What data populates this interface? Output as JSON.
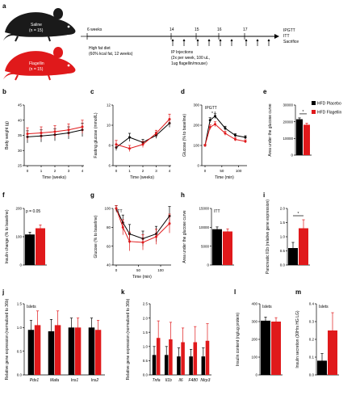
{
  "colors": {
    "black": "#000000",
    "red": "#e0191b",
    "mouse_black": "#1a1a1a",
    "mouse_red": "#e0191b"
  },
  "panel_labels": {
    "a": "a",
    "b": "b",
    "c": "c",
    "d": "d",
    "e": "e",
    "f": "f",
    "g": "g",
    "h": "h",
    "i": "i",
    "j": "j",
    "k": "k",
    "l": "l",
    "m": "m"
  },
  "schematic": {
    "saline_group": "Saline",
    "saline_n": "(n = 15)",
    "flagellin_group": "Flagellin",
    "flagellin_n": "(n = 15)",
    "start_label": "6 weeks",
    "diet_line1": "High fat diet",
    "diet_line2": "(60% kcal fat, 12 weeks)",
    "week_ticks": [
      "14",
      "15",
      "16",
      "17"
    ],
    "ip_line1": "IP Injections",
    "ip_line2": "(2x per week, 100 uL,",
    "ip_line3": "1ug flagellin/mouse)",
    "end_line1": "IPGTT",
    "end_line2": "ITT",
    "end_line3": "Sacrifice"
  },
  "legend": {
    "placebo": "HFD Placebo",
    "flagellin": "HFD Flagellin"
  },
  "chart_data": [
    {
      "panel": "b",
      "type": "line",
      "x": [
        0,
        1,
        2,
        3,
        4
      ],
      "series": [
        {
          "name": "HFD Placebo",
          "values": [
            34.5,
            34.8,
            35.2,
            35.8,
            36.8
          ],
          "errors": [
            2.0,
            2.0,
            2.0,
            2.0,
            2.2
          ]
        },
        {
          "name": "HFD Flagellin",
          "values": [
            35.5,
            35.8,
            36.2,
            36.8,
            37.8
          ],
          "errors": [
            2.0,
            2.0,
            2.0,
            2.0,
            2.2
          ]
        }
      ],
      "xlabel": "Time (weeks)",
      "ylabel": "Body weight (g)",
      "ylim": [
        25,
        45
      ],
      "yticks": [
        "25",
        "30",
        "35",
        "40",
        "45"
      ],
      "xticks": [
        "0",
        "1",
        "2",
        "3",
        "4"
      ]
    },
    {
      "panel": "c",
      "type": "line",
      "x": [
        0,
        1,
        2,
        3,
        4
      ],
      "series": [
        {
          "name": "HFD Placebo",
          "values": [
            7.8,
            8.8,
            8.3,
            9.0,
            10.2
          ],
          "errors": [
            0.3,
            0.4,
            0.3,
            0.3,
            0.4
          ]
        },
        {
          "name": "HFD Flagellin",
          "values": [
            8.1,
            7.7,
            8.1,
            9.2,
            10.6
          ],
          "errors": [
            0.4,
            0.3,
            0.3,
            0.3,
            0.5
          ]
        }
      ],
      "xlabel": "Time (weeks)",
      "ylabel": "Fasting glucose (mmol/L)",
      "ylim": [
        6,
        12
      ],
      "yticks": [
        "6",
        "8",
        "10",
        "12"
      ],
      "xticks": [
        "0",
        "1",
        "2",
        "3",
        "4"
      ]
    },
    {
      "panel": "d",
      "type": "line",
      "x": [
        0,
        15,
        30,
        60,
        90,
        120
      ],
      "series": [
        {
          "name": "HFD Placebo",
          "values": [
            100,
            225,
            245,
            185,
            150,
            140
          ],
          "errors": [
            5,
            12,
            12,
            10,
            8,
            8
          ]
        },
        {
          "name": "HFD Flagellin",
          "values": [
            100,
            190,
            205,
            160,
            130,
            120
          ],
          "errors": [
            5,
            12,
            12,
            10,
            8,
            8
          ]
        }
      ],
      "title": "IPGTT",
      "annotation": "* *",
      "xlabel": "Time (min)",
      "ylabel": "Glucose (% to baseline)",
      "ylim": [
        0,
        300
      ],
      "yticks": [
        "0",
        "100",
        "200",
        "300"
      ],
      "xticks": [
        "0",
        "50",
        "100"
      ]
    },
    {
      "panel": "e",
      "type": "bar",
      "categories": [
        "HFD Placebo",
        "HFD Flagellin"
      ],
      "values": [
        21500,
        18200
      ],
      "errors": [
        800,
        900
      ],
      "annotation": "*",
      "ylabel": "Area under the glucose curve",
      "ylim": [
        0,
        30000
      ],
      "yticks": [
        "0",
        "10000",
        "20000",
        "30000"
      ]
    },
    {
      "panel": "f",
      "type": "bar",
      "categories": [
        "HFD Placebo",
        "HFD Flagellin"
      ],
      "values": [
        108,
        130
      ],
      "errors": [
        8,
        12
      ],
      "annotation": "p = 0.05",
      "ylabel": "Insulin change (% to baseline)",
      "ylim": [
        0,
        200
      ],
      "yticks": [
        "0",
        "100",
        "200"
      ]
    },
    {
      "panel": "g",
      "type": "line",
      "x": [
        0,
        15,
        30,
        60,
        90,
        120
      ],
      "series": [
        {
          "name": "HFD Placebo",
          "values": [
            100,
            85,
            73,
            68,
            73,
            92
          ],
          "errors": [
            3,
            8,
            10,
            8,
            8,
            10
          ]
        },
        {
          "name": "HFD Flagellin",
          "values": [
            100,
            80,
            65,
            64,
            70,
            84
          ],
          "errors": [
            3,
            8,
            10,
            8,
            8,
            10
          ]
        }
      ],
      "title": "ITT",
      "xlabel": "Time (min)",
      "ylabel": "Glucose (% to baseline)",
      "ylim": [
        40,
        100
      ],
      "yticks": [
        "40",
        "60",
        "80",
        "100"
      ],
      "xticks": [
        "0",
        "50",
        "100"
      ]
    },
    {
      "panel": "h",
      "type": "bar",
      "categories": [
        "HFD Placebo",
        "HFD Flagellin"
      ],
      "values": [
        9500,
        8900
      ],
      "errors": [
        600,
        700
      ],
      "title": "ITT",
      "ylabel": "Area under the glucose curve",
      "ylim": [
        0,
        15000
      ],
      "yticks": [
        "0",
        "5000",
        "10000",
        "15000"
      ]
    },
    {
      "panel": "i",
      "type": "bar",
      "categories": [
        "HFD Placebo",
        "HFD Flagellin"
      ],
      "values": [
        0.6,
        1.3
      ],
      "errors": [
        0.2,
        0.3
      ],
      "annotation": "*",
      "ylabel": "Pancreatic Il1b (relative gene expression)",
      "ylim": [
        0,
        2.0
      ],
      "yticks": [
        "0.0",
        "0.5",
        "1.0",
        "1.5",
        "2.0"
      ]
    },
    {
      "panel": "j",
      "type": "bar",
      "title": "Islets",
      "categories": [
        "Pdx1",
        "Mafa",
        "Ins1",
        "Ins2"
      ],
      "series": [
        {
          "name": "HFD Placebo",
          "values": [
            0.95,
            0.92,
            1.0,
            1.0
          ],
          "errors": [
            0.2,
            0.25,
            0.2,
            0.2
          ]
        },
        {
          "name": "HFD Flagellin",
          "values": [
            1.05,
            1.05,
            1.0,
            0.95
          ],
          "errors": [
            0.3,
            0.3,
            0.2,
            0.2
          ]
        }
      ],
      "ylabel": "Relative gene expression (normalized to 36b)",
      "ylim": [
        0.0,
        1.5
      ],
      "yticks": [
        "0.0",
        "0.5",
        "1.0",
        "1.5"
      ]
    },
    {
      "panel": "k",
      "type": "bar",
      "categories": [
        "Tnfa",
        "Il1b",
        "Il6",
        "F480",
        "Nlrp3"
      ],
      "series": [
        {
          "name": "HFD Placebo",
          "values": [
            0.7,
            0.7,
            0.65,
            0.65,
            0.65
          ],
          "errors": [
            0.3,
            0.3,
            0.3,
            0.25,
            0.3
          ]
        },
        {
          "name": "HFD Flagellin",
          "values": [
            1.3,
            1.25,
            1.15,
            1.15,
            1.2
          ],
          "errors": [
            0.6,
            0.6,
            0.5,
            0.55,
            0.6
          ]
        }
      ],
      "ylabel": "Relative gene expression (normalized to 36b)",
      "ylim": [
        0.0,
        2.5
      ],
      "yticks": [
        "0.0",
        "0.5",
        "1.0",
        "1.5",
        "2.0",
        "2.5"
      ]
    },
    {
      "panel": "l",
      "type": "bar",
      "title": "Islets",
      "categories": [
        "HFD Placebo",
        "HFD Flagellin"
      ],
      "values": [
        305,
        300
      ],
      "errors": [
        20,
        22
      ],
      "ylabel": "Insulin content (ng/ug protein)",
      "ylim": [
        0,
        400
      ],
      "yticks": [
        "0",
        "100",
        "200",
        "300",
        "400"
      ]
    },
    {
      "panel": "m",
      "type": "bar",
      "title": "Islets",
      "categories": [
        "HFD Placebo",
        "HFD Flagellin"
      ],
      "values": [
        0.08,
        0.25
      ],
      "errors": [
        0.04,
        0.1
      ],
      "ylabel": "Insulin secretion (30Hrs HG LG)",
      "ylim": [
        0.0,
        0.4
      ],
      "yticks": [
        "0.0",
        "0.1",
        "0.2",
        "0.3",
        "0.4"
      ]
    }
  ]
}
